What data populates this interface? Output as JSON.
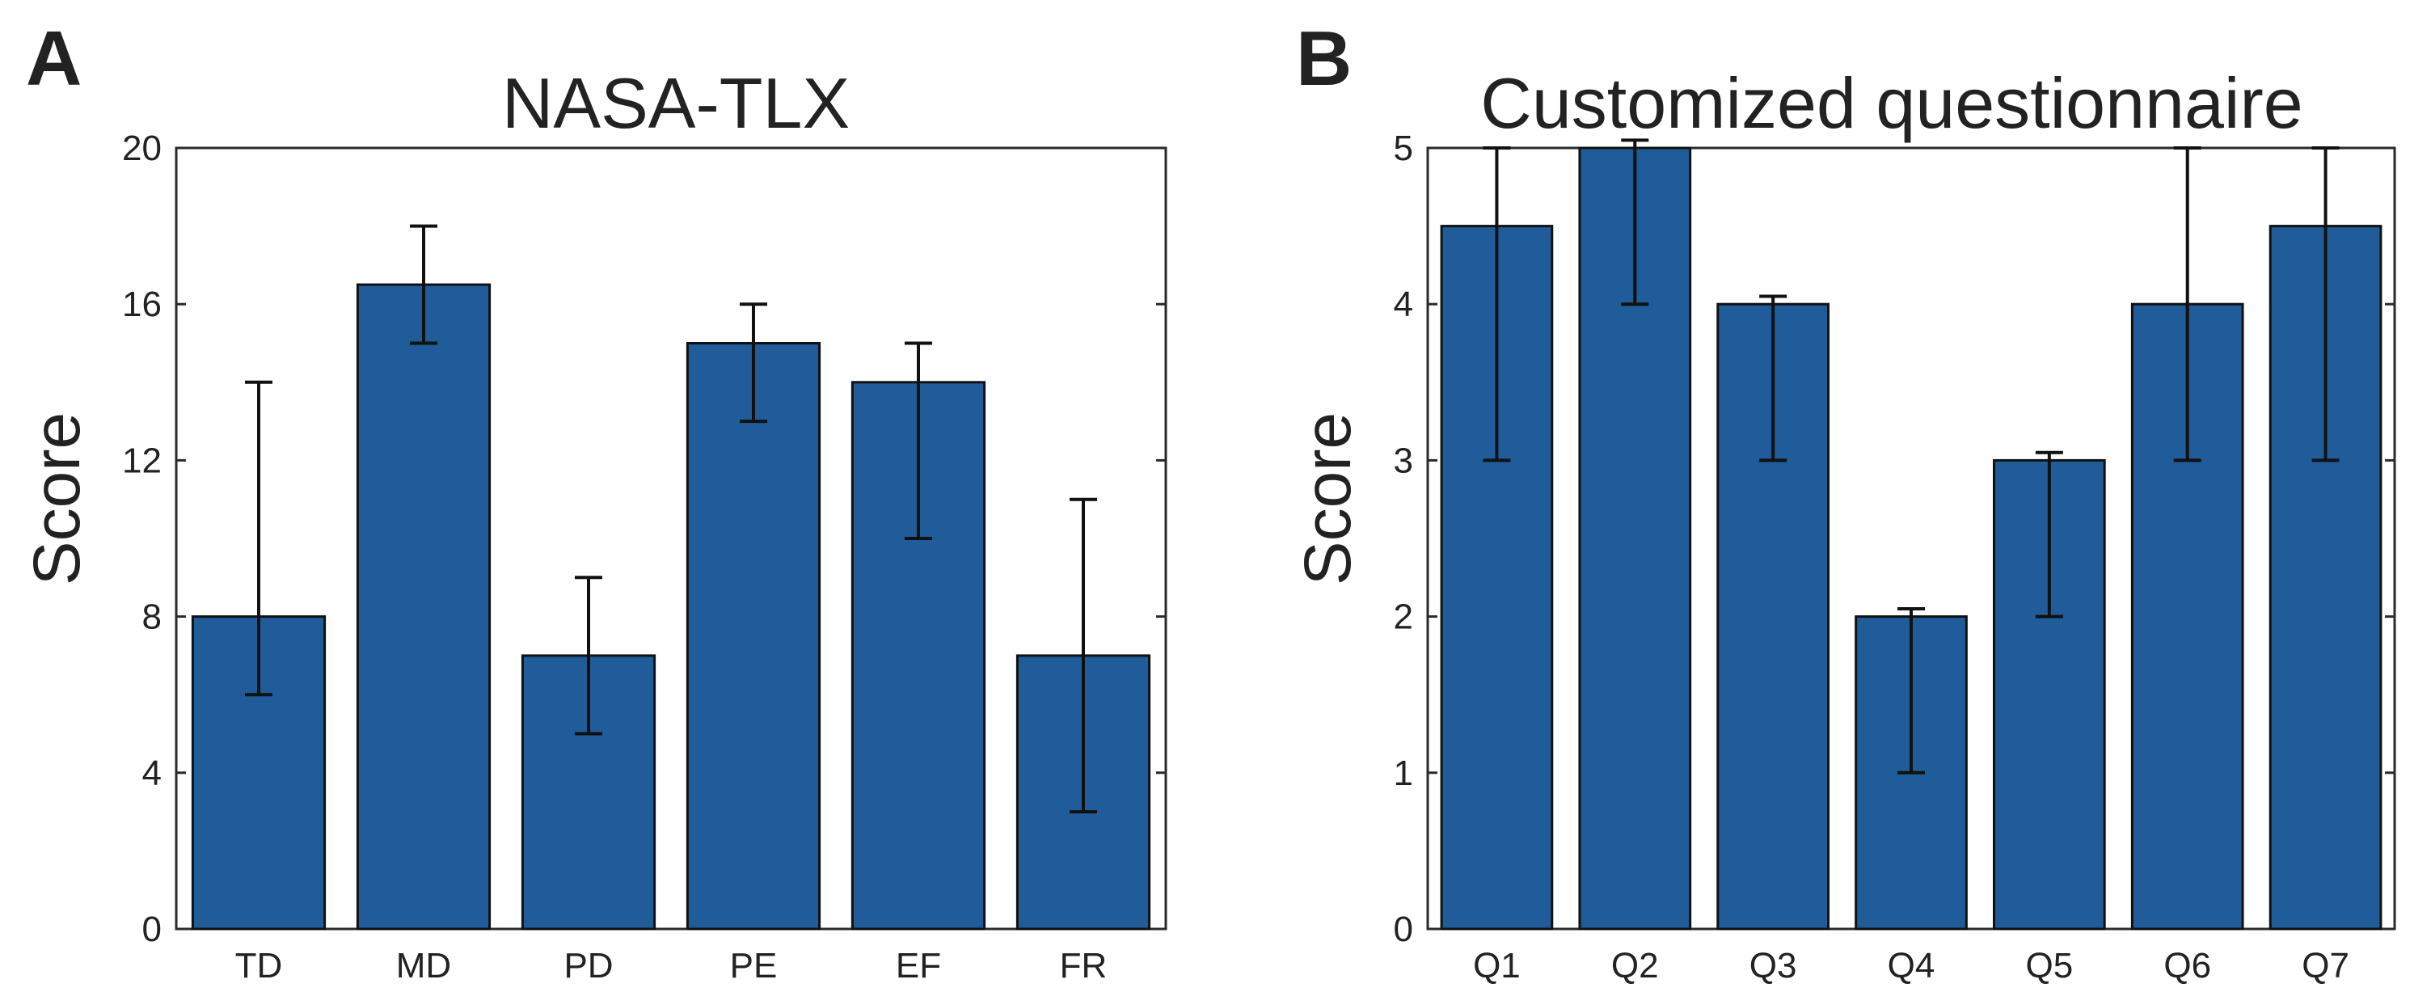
{
  "chart_data": [
    {
      "type": "bar",
      "panel_label": "A",
      "title": "NASA-TLX",
      "xlabel": "",
      "ylabel": "Score",
      "categories": [
        "TD",
        "MD",
        "PD",
        "PE",
        "EF",
        "FR"
      ],
      "values": [
        8,
        16.5,
        7,
        15,
        14,
        7
      ],
      "error_low": [
        6,
        15,
        5,
        13,
        10,
        3
      ],
      "error_high": [
        14,
        18,
        9,
        16,
        15,
        11
      ],
      "ylim": [
        0,
        20
      ],
      "yticks": [
        0,
        4,
        8,
        12,
        16,
        20
      ],
      "ytick_labels": [
        "0",
        "4",
        "8",
        "12",
        "16",
        "20"
      ],
      "bar_color": "#1f5c99",
      "grid": false,
      "legend": "none"
    },
    {
      "type": "bar",
      "panel_label": "B",
      "title": "Customized questionnaire",
      "xlabel": "",
      "ylabel": "Score",
      "categories": [
        "Q1",
        "Q2",
        "Q3",
        "Q4",
        "Q5",
        "Q6",
        "Q7"
      ],
      "values": [
        4.5,
        5,
        4,
        2,
        3,
        4,
        4.5
      ],
      "error_low": [
        3,
        4,
        3,
        1,
        2,
        3,
        3
      ],
      "error_high": [
        5,
        5.05,
        4.05,
        2.05,
        3.05,
        5,
        5
      ],
      "ylim": [
        0,
        5
      ],
      "yticks": [
        0,
        1,
        2,
        3,
        4,
        5
      ],
      "ytick_labels": [
        "0",
        "1",
        "2",
        "3",
        "4",
        "5"
      ],
      "bar_color": "#1f5c99",
      "grid": false,
      "legend": "none"
    }
  ]
}
